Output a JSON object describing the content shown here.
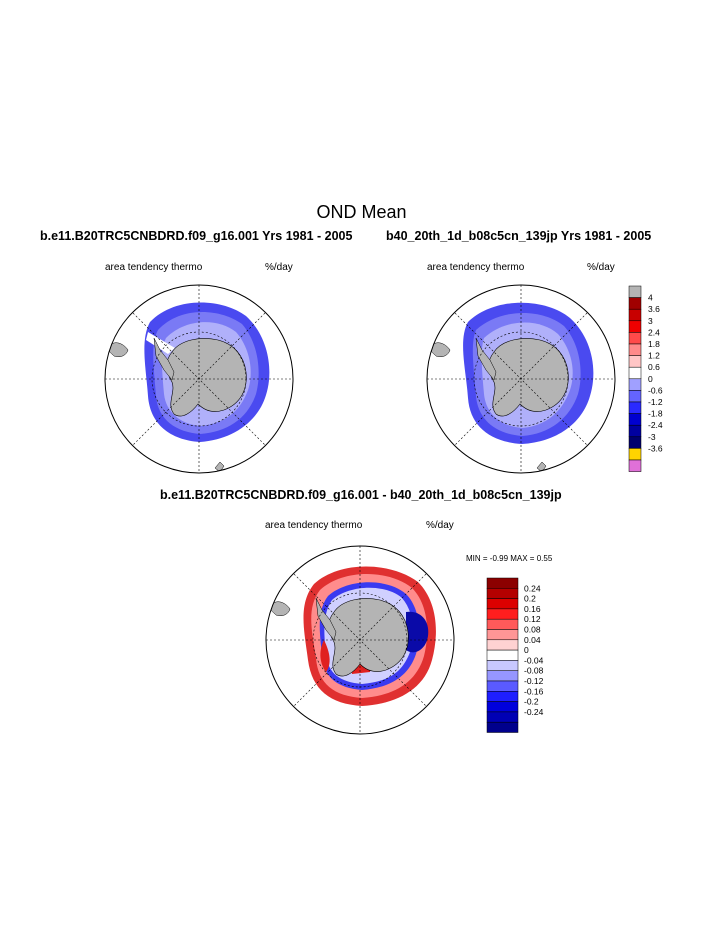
{
  "main_title": "OND Mean",
  "panels": [
    {
      "title": "b.e11.B20TRC5CNBDRD.f09_g16.001  Yrs 1981 - 2005",
      "variable": "area tendency thermo",
      "units": "%/day"
    },
    {
      "title": "b40_20th_1d_b08c5cn_139jp  Yrs 1981 - 2005",
      "variable": "area tendency thermo",
      "units": "%/day"
    },
    {
      "title": "b.e11.B20TRC5CNBDRD.f09_g16.001 - b40_20th_1d_b08c5cn_139jp",
      "variable": "area tendency thermo",
      "units": "%/day"
    }
  ],
  "diff_stats": {
    "min_label": "MIN = ",
    "min": "-0.99",
    "max_label": "MAX = ",
    "max": "0.55"
  },
  "colorbar_top": {
    "labels": [
      "4",
      "3.6",
      "3",
      "2.4",
      "1.8",
      "1.2",
      "0.6",
      "0",
      "-0.6",
      "-1.2",
      "-1.8",
      "-2.4",
      "-3",
      "-3.6"
    ],
    "colors": [
      "#b4b4b4",
      "#a00000",
      "#c80000",
      "#ee0000",
      "#ff4a4a",
      "#ff8a8a",
      "#ffc6c6",
      "#ffffff",
      "#a0a0ff",
      "#6464ff",
      "#2a2aff",
      "#0000d0",
      "#0000a0",
      "#00006e",
      "#ffd400",
      "#e070d8"
    ]
  },
  "colorbar_diff": {
    "labels": [
      "0.24",
      "0.2",
      "0.16",
      "0.12",
      "0.08",
      "0.04",
      "0",
      "-0.04",
      "-0.08",
      "-0.12",
      "-0.16",
      "-0.2",
      "-0.24"
    ],
    "colors": [
      "#8c0000",
      "#b40000",
      "#dc0000",
      "#ff1e1e",
      "#ff5a5a",
      "#ff9696",
      "#ffd2d2",
      "#ffffff",
      "#c8c8ff",
      "#9696ff",
      "#5a5aff",
      "#1e1eff",
      "#0000dc",
      "#0000b4",
      "#00008c"
    ]
  }
}
